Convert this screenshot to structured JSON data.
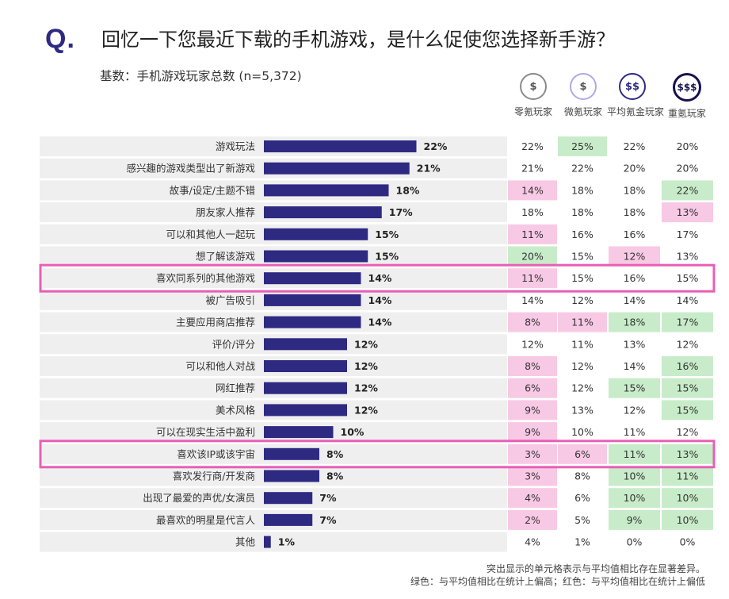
{
  "header": {
    "q_mark": "Q.",
    "title": "回忆一下您最近下载的手机游戏，是什么促使您选择新手游？",
    "subtitle": "基数：手机游戏玩家总数 (n=5,372)"
  },
  "segments": [
    {
      "icon": "$",
      "label": "零氪玩家",
      "ring": "#8a8a8a",
      "fill": "#ffffff",
      "text": "#555555",
      "ring_width": 2
    },
    {
      "icon": "$",
      "label": "微氪玩家",
      "ring": "#b2a9e0",
      "fill": "#ffffff",
      "text": "#555555",
      "ring_width": 2
    },
    {
      "icon": "$$",
      "label": "平均氪金玩家",
      "ring": "#2e2a82",
      "fill": "#ffffff",
      "text": "#2e2a82",
      "ring_width": 2
    },
    {
      "icon": "$$$",
      "label": "重氪玩家",
      "ring": "#15124f",
      "fill": "#ffffff",
      "text": "#15124f",
      "ring_width": 3
    }
  ],
  "chart_data": {
    "type": "bar",
    "orientation": "horizontal",
    "categories": [
      "游戏玩法",
      "感兴趣的游戏类型出了新游戏",
      "故事/设定/主题不错",
      "朋友家人推荐",
      "可以和其他人一起玩",
      "想了解该游戏",
      "喜欢同系列的其他游戏",
      "被广告吸引",
      "主要应用商店推荐",
      "评价/评分",
      "可以和他人对战",
      "网红推荐",
      "美术风格",
      "可以在现实生活中盈利",
      "喜欢该IP或该宇宙",
      "喜欢发行商/开发商",
      "出现了最爱的声优/女演员",
      "最喜欢的明星是代言人",
      "其他"
    ],
    "values": [
      22,
      21,
      18,
      17,
      15,
      15,
      14,
      14,
      14,
      12,
      12,
      12,
      12,
      10,
      8,
      8,
      7,
      7,
      1
    ],
    "value_labels": [
      "22%",
      "21%",
      "18%",
      "17%",
      "15%",
      "15%",
      "14%",
      "14%",
      "14%",
      "12%",
      "12%",
      "12%",
      "12%",
      "10%",
      "8%",
      "8%",
      "7%",
      "7%",
      "1%"
    ],
    "bar_color": "#2e2a82",
    "highlighted_rows": [
      6,
      14
    ],
    "highlight_color": "#e85fb4",
    "segment_table": {
      "columns": [
        "零氪玩家",
        "微氪玩家",
        "平均氪金玩家",
        "重氪玩家"
      ],
      "rows": [
        [
          "22%",
          "25%",
          "22%",
          "20%"
        ],
        [
          "21%",
          "22%",
          "20%",
          "20%"
        ],
        [
          "14%",
          "18%",
          "18%",
          "22%"
        ],
        [
          "18%",
          "18%",
          "18%",
          "13%"
        ],
        [
          "11%",
          "16%",
          "16%",
          "17%"
        ],
        [
          "20%",
          "15%",
          "12%",
          "13%"
        ],
        [
          "11%",
          "15%",
          "16%",
          "15%"
        ],
        [
          "14%",
          "12%",
          "14%",
          "14%"
        ],
        [
          "8%",
          "11%",
          "18%",
          "17%"
        ],
        [
          "12%",
          "11%",
          "13%",
          "12%"
        ],
        [
          "8%",
          "12%",
          "14%",
          "16%"
        ],
        [
          "6%",
          "12%",
          "15%",
          "15%"
        ],
        [
          "9%",
          "13%",
          "12%",
          "15%"
        ],
        [
          "9%",
          "10%",
          "11%",
          "12%"
        ],
        [
          "3%",
          "6%",
          "11%",
          "13%"
        ],
        [
          "3%",
          "8%",
          "10%",
          "11%"
        ],
        [
          "4%",
          "6%",
          "10%",
          "10%"
        ],
        [
          "2%",
          "5%",
          "9%",
          "10%"
        ],
        [
          "4%",
          "1%",
          "0%",
          "0%"
        ]
      ],
      "significance": [
        [
          "",
          "H",
          "",
          ""
        ],
        [
          "",
          "",
          "",
          ""
        ],
        [
          "L",
          "",
          "",
          "H"
        ],
        [
          "",
          "",
          "",
          "L"
        ],
        [
          "L",
          "",
          "",
          ""
        ],
        [
          "H",
          "",
          "L",
          ""
        ],
        [
          "L",
          "",
          "",
          ""
        ],
        [
          "",
          "",
          "",
          ""
        ],
        [
          "L",
          "L",
          "H",
          "H"
        ],
        [
          "",
          "",
          "",
          ""
        ],
        [
          "L",
          "",
          "",
          "H"
        ],
        [
          "L",
          "",
          "H",
          "H"
        ],
        [
          "L",
          "",
          "",
          "H"
        ],
        [
          "L",
          "",
          "",
          ""
        ],
        [
          "L",
          "L",
          "H",
          "H"
        ],
        [
          "L",
          "",
          "H",
          "H"
        ],
        [
          "L",
          "",
          "H",
          "H"
        ],
        [
          "L",
          "",
          "H",
          "H"
        ],
        [
          "",
          "",
          "",
          ""
        ]
      ],
      "higher_color": "#c8ecc9",
      "lower_color": "#f8c9e5"
    }
  },
  "footnote": {
    "line1": "突出显示的单元格表示与平均值相比存在显著差异。",
    "line2": "绿色：与平均值相比在统计上偏高；红色：与平均值相比在统计上偏低"
  }
}
